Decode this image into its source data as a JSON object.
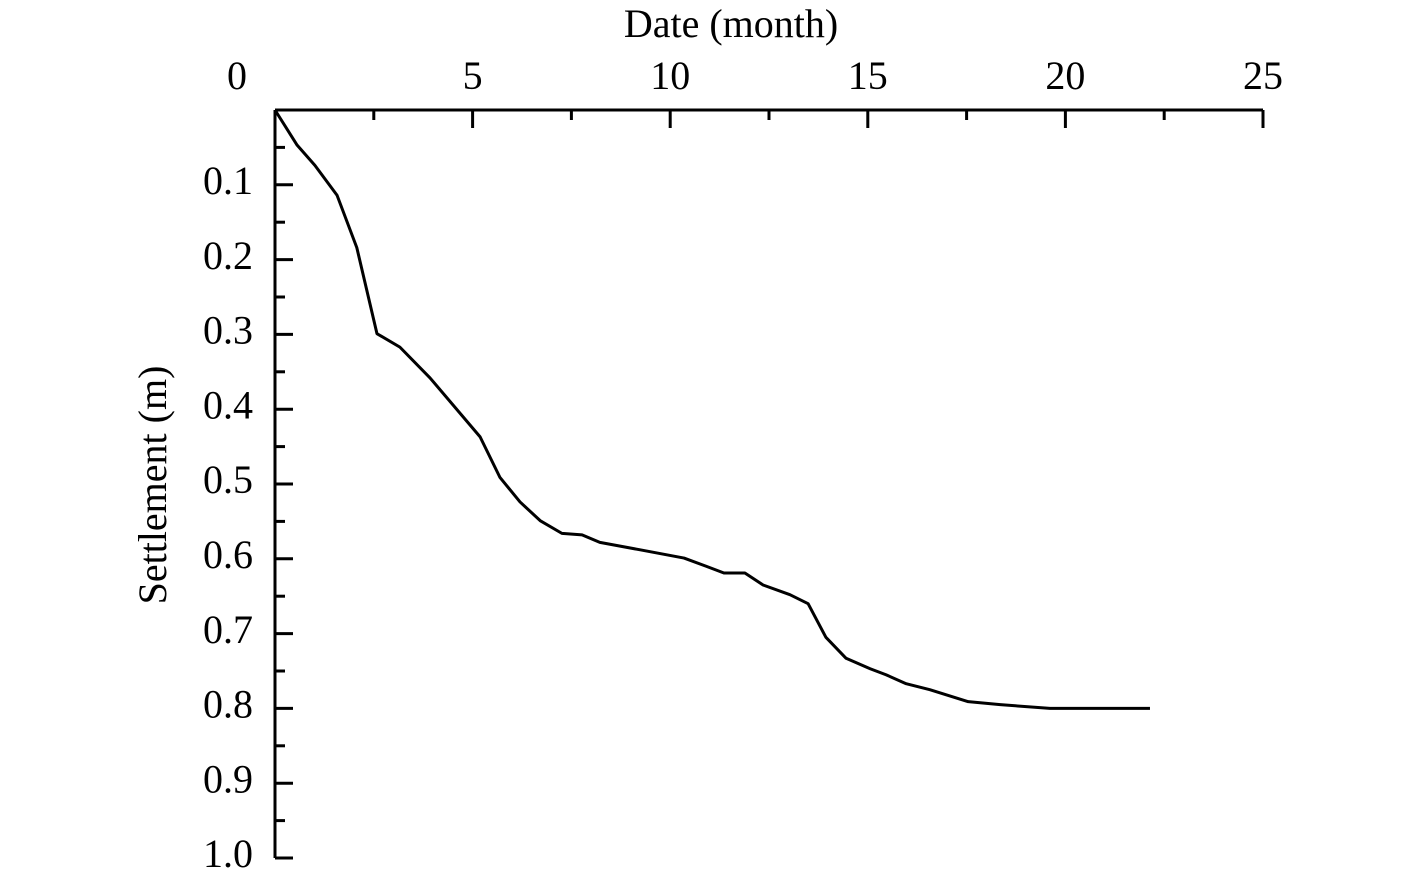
{
  "chart_data": {
    "type": "line",
    "x_label": "Date (month)",
    "y_label": "Settlement (m)",
    "x_axis_position": "top",
    "y_inverted": true,
    "grid": false,
    "xlim": [
      0,
      25
    ],
    "xticks": [
      0,
      5,
      10,
      15,
      20,
      25
    ],
    "ylim": [
      0,
      1
    ],
    "yticks": [
      0.1,
      0.2,
      0.3,
      0.4,
      0.5,
      0.6,
      0.7,
      0.8,
      0.9,
      {
        "value": 1,
        "label": "1.0"
      }
    ],
    "series": [
      {
        "color": "#000000",
        "x": [
          0,
          0.56,
          1.01,
          1.57,
          2.07,
          2.58,
          3.16,
          3.92,
          5.19,
          5.69,
          6.2,
          6.71,
          7.26,
          7.77,
          8.22,
          9.24,
          10.35,
          10.91,
          11.36,
          11.89,
          12.35,
          13.03,
          13.49,
          13.94,
          14.45,
          15.06,
          15.46,
          15.97,
          16.57,
          17.54,
          18.35,
          19.61,
          22.14
        ],
        "values": [
          0,
          0.047,
          0.074,
          0.114,
          0.184,
          0.299,
          0.317,
          0.358,
          0.437,
          0.491,
          0.524,
          0.549,
          0.566,
          0.568,
          0.578,
          0.588,
          0.599,
          0.61,
          0.619,
          0.619,
          0.635,
          0.648,
          0.66,
          0.705,
          0.733,
          0.747,
          0.755,
          0.767,
          0.775,
          0.791,
          0.795,
          0.8,
          0.8
        ]
      }
    ]
  }
}
